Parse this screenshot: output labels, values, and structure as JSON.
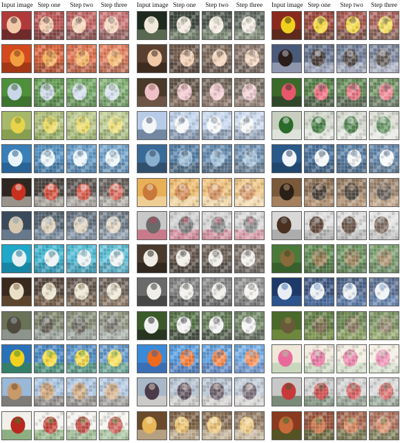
{
  "groups": [
    {
      "headers": [
        "Input image",
        "Step one",
        "Step two",
        "Step three"
      ],
      "rows": [
        {
          "colors": [
            "#b03a3a",
            "#f2c9a8",
            "#3a1e1e"
          ]
        },
        {
          "colors": [
            "#d44a1e",
            "#f0a040",
            "#7a2a10"
          ]
        },
        {
          "colors": [
            "#4e8f3a",
            "#c9d7e8",
            "#2f5f25"
          ]
        },
        {
          "colors": [
            "#a6b86a",
            "#e8d44a",
            "#6e8a3a"
          ]
        },
        {
          "colors": [
            "#3a7fb8",
            "#e8f4fa",
            "#1c4f7a"
          ]
        },
        {
          "colors": [
            "#2e2620",
            "#c8311e",
            "#f2ece4"
          ]
        },
        {
          "colors": [
            "#3a4a5a",
            "#d8c8b0",
            "#8aa0b8"
          ]
        },
        {
          "colors": [
            "#1fa8c8",
            "#e8f0f2",
            "#106a88"
          ]
        },
        {
          "colors": [
            "#3a2a1e",
            "#e8e0c8",
            "#7a5a3a"
          ]
        },
        {
          "colors": [
            "#6a7258",
            "#4e4a3e",
            "#a8b0b8"
          ]
        },
        {
          "colors": [
            "#2a72b8",
            "#f2d21e",
            "#3a8a2a"
          ]
        },
        {
          "colors": [
            "#9ab8d8",
            "#c89a6a",
            "#6a4a2a"
          ]
        },
        {
          "colors": [
            "#f2f0ea",
            "#b8281e",
            "#3a7a2a"
          ]
        }
      ]
    },
    {
      "headers": [
        "Input image",
        "Step one",
        "Step two",
        "Step three"
      ],
      "rows": [
        {
          "colors": [
            "#1e2a1e",
            "#f2e8dc",
            "#8a9a7a"
          ]
        },
        {
          "colors": [
            "#5a4030",
            "#f0c8a8",
            "#2a1a14"
          ]
        },
        {
          "colors": [
            "#4a3a2a",
            "#f0c0c8",
            "#8a6a5a"
          ]
        },
        {
          "colors": [
            "#b8cce8",
            "#f4f6f8",
            "#3a4e6a"
          ]
        },
        {
          "colors": [
            "#3a6a98",
            "#8ab0d0",
            "#2a3a4a"
          ]
        },
        {
          "colors": [
            "#e8b058",
            "#c8783a",
            "#f4e8c8"
          ]
        },
        {
          "colors": [
            "#c8c8c8",
            "#6a6a6a",
            "#c83a5a"
          ]
        },
        {
          "colors": [
            "#4a3a2e",
            "#f0ece4",
            "#1e1a16"
          ]
        },
        {
          "colors": [
            "#6a6a6a",
            "#f0eee8",
            "#2a2a2a"
          ]
        },
        {
          "colors": [
            "#3a5a2a",
            "#f0f0f0",
            "#1a1a1a"
          ]
        },
        {
          "colors": [
            "#3a8ad8",
            "#f06a1e",
            "#3a5a9a"
          ]
        },
        {
          "colors": [
            "#a8b8c8",
            "#4a3a4a",
            "#e8d8c8"
          ]
        },
        {
          "colors": [
            "#6a4a2a",
            "#e8b858",
            "#f2e8c8"
          ]
        }
      ]
    },
    {
      "headers": [
        "Input image",
        "Step one",
        "Step two",
        "Step three"
      ],
      "rows": [
        {
          "colors": [
            "#8a2a1e",
            "#f0d21e",
            "#3a2a1e"
          ]
        },
        {
          "colors": [
            "#4a5a7a",
            "#2a1e1a",
            "#c8c8d8"
          ]
        },
        {
          "colors": [
            "#3a6a2a",
            "#e8586a",
            "#2a2a2a"
          ]
        },
        {
          "colors": [
            "#c8cec0",
            "#2a6a2a",
            "#f0f2ee"
          ]
        },
        {
          "colors": [
            "#2a5a8a",
            "#f2f6f8",
            "#1a3a5a"
          ]
        },
        {
          "colors": [
            "#7a5a3a",
            "#2a2018",
            "#c8a078"
          ]
        },
        {
          "colors": [
            "#d8d8d8",
            "#4a3020",
            "#8a8a8a"
          ]
        },
        {
          "colors": [
            "#4a7a3a",
            "#8a6a3a",
            "#2a4a20"
          ]
        },
        {
          "colors": [
            "#1e3a6a",
            "#e8eef4",
            "#3a6aa8"
          ]
        },
        {
          "colors": [
            "#4a6a2a",
            "#6a5a3a",
            "#8aa04a"
          ]
        },
        {
          "colors": [
            "#f0e8d8",
            "#e86a9a",
            "#a8c8a8"
          ]
        },
        {
          "colors": [
            "#c8c8c8",
            "#c83a3a",
            "#3a5a3a"
          ]
        },
        {
          "colors": [
            "#8a3a1e",
            "#c86a3a",
            "#2a6a2a"
          ]
        }
      ]
    }
  ]
}
